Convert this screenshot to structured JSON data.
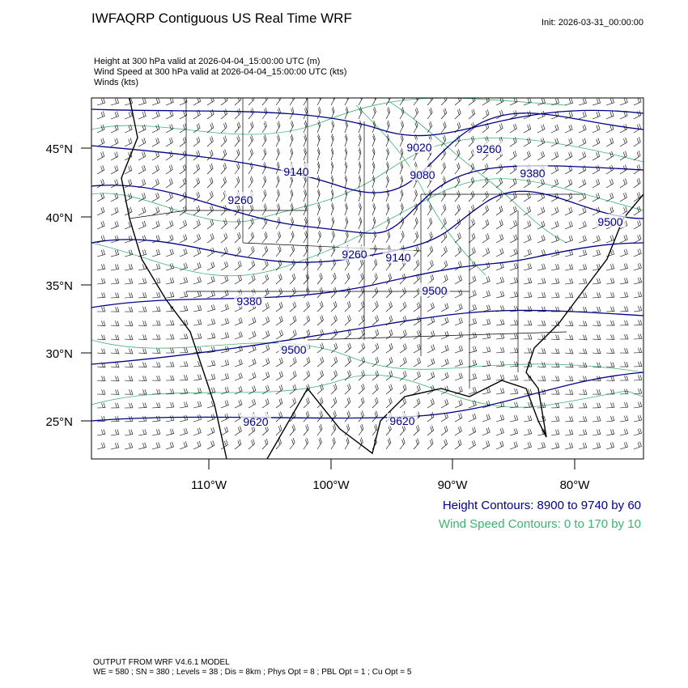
{
  "header": {
    "title": "IWFAQRP Contiguous US Real Time WRF",
    "init": "Init: 2026-03-31_00:00:00",
    "fields": [
      "Height at 300 hPa valid at 2026-04-04_15:00:00 UTC   (m)",
      "Wind Speed at 300 hPa valid at 2026-04-04_15:00:00 UTC   (kts)",
      "Winds   (kts)"
    ]
  },
  "map": {
    "lat_labels": [
      "45°N",
      "40°N",
      "35°N",
      "30°N",
      "25°N"
    ],
    "lon_labels": [
      "110°W",
      "100°W",
      "90°W",
      "80°W"
    ],
    "height_labels": [
      "9020",
      "9080",
      "9140",
      "9260",
      "9260",
      "9140",
      "9260",
      "9380",
      "9380",
      "9500",
      "9500",
      "9500",
      "9620",
      "9620"
    ]
  },
  "legend": {
    "height": "Height Contours: 8900 to 9740 by 60",
    "wind": "Wind Speed Contours: 0 to 170 by 10"
  },
  "footer": [
    "OUTPUT FROM WRF V4.6.1 MODEL",
    "WE = 580 ; SN = 380 ; Levels = 38 ; Dis = 8km ; Phys Opt = 8 ; PBL Opt = 1 ; Cu Opt = 5"
  ]
}
